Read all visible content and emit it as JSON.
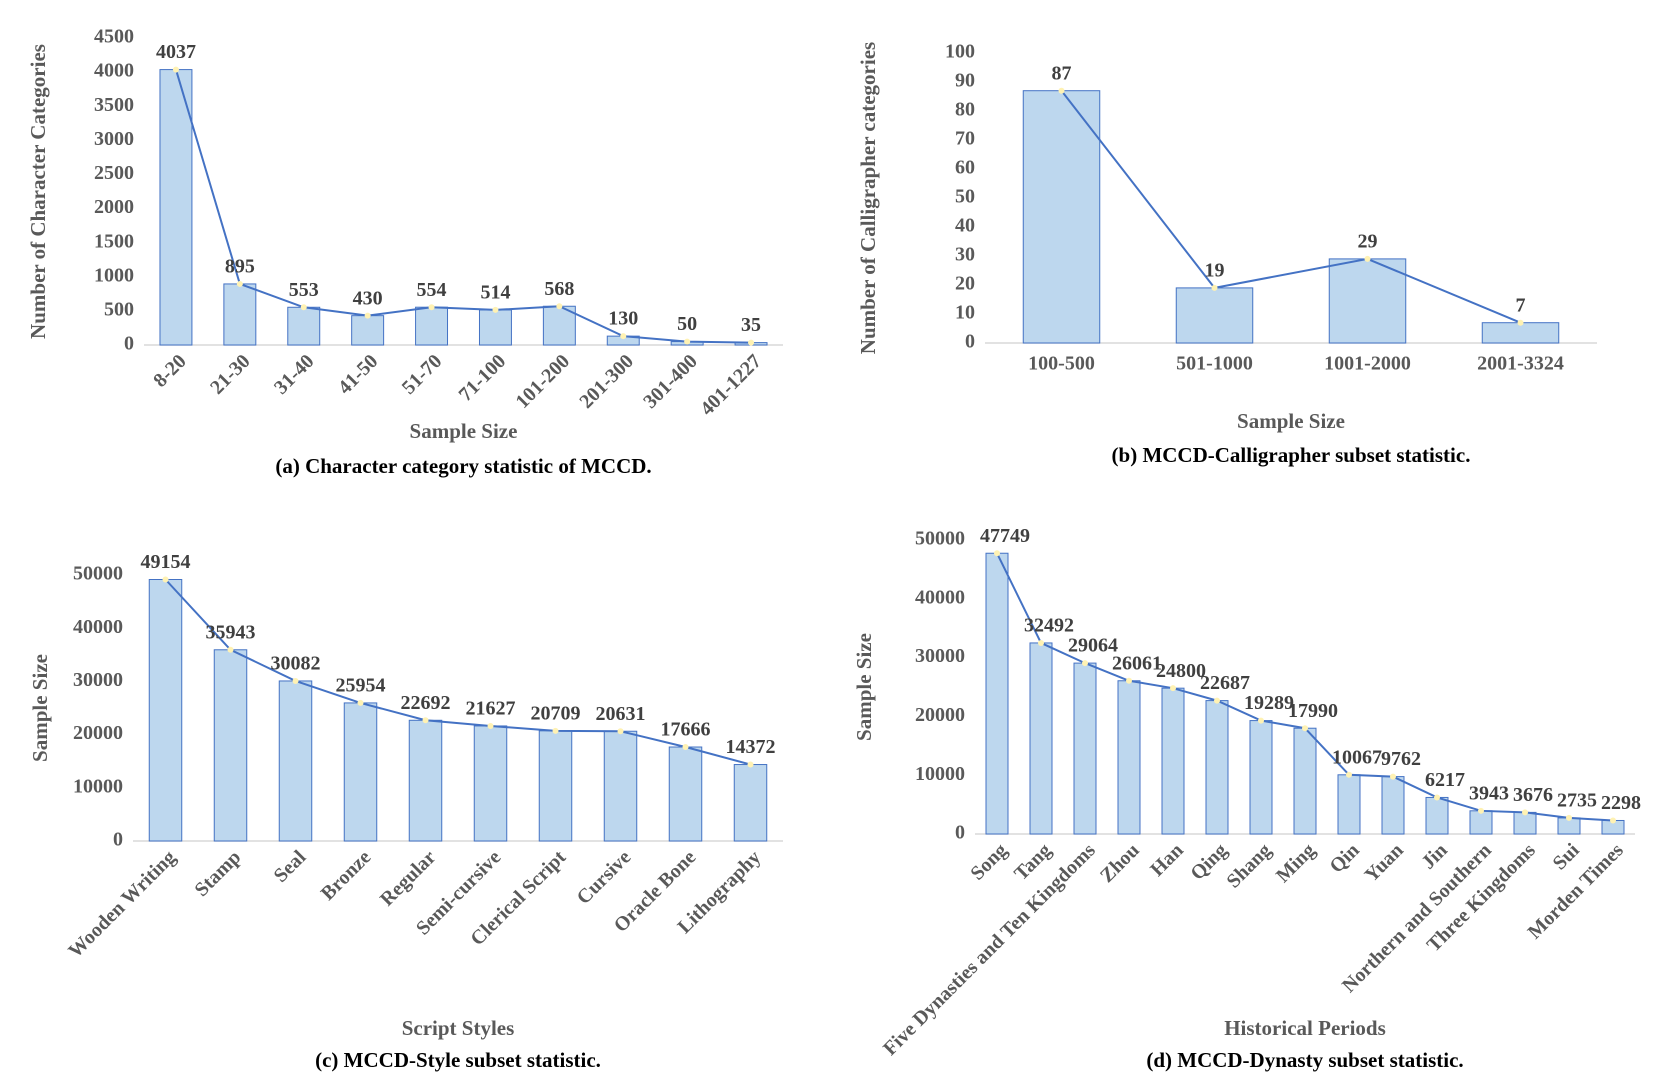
{
  "chart_data": [
    {
      "type": "bar",
      "categories": [
        "8-20",
        "21-30",
        "31-40",
        "41-50",
        "51-70",
        "71-100",
        "101-200",
        "201-300",
        "301-400",
        "401-1227"
      ],
      "values": [
        4037,
        895,
        553,
        430,
        554,
        514,
        568,
        130,
        50,
        35
      ],
      "color": "#bdd7ee",
      "line_color": "#4472c4",
      "ylim": [
        0,
        4500
      ],
      "yticks": [
        0,
        500,
        1000,
        1500,
        2000,
        2500,
        3000,
        3500,
        4000,
        4500
      ],
      "xlabel": "Sample Size",
      "ylabel": "Number of Character Categories",
      "caption": "(a) Character category statistic of MCCD."
    },
    {
      "type": "bar",
      "categories": [
        "100-500",
        "501-1000",
        "1001-2000",
        "2001-3324"
      ],
      "values": [
        87,
        19,
        29,
        7
      ],
      "color": "#bdd7ee",
      "line_color": "#4472c4",
      "ylim": [
        0,
        100
      ],
      "yticks": [
        0,
        10,
        20,
        30,
        40,
        50,
        60,
        70,
        80,
        90,
        100
      ],
      "xlabel": "Sample Size",
      "ylabel": "Number of Calligrapher categories",
      "caption": "(b) MCCD-Calligrapher subset statistic."
    },
    {
      "type": "bar",
      "categories": [
        "Wooden Writing",
        "Stamp",
        "Seal",
        "Bronze",
        "Regular",
        "Semi-cursive",
        "Clerical Script",
        "Cursive",
        "Oracle Bone",
        "Lithography"
      ],
      "values": [
        49154,
        35943,
        30082,
        25954,
        22692,
        21627,
        20709,
        20631,
        17666,
        14372
      ],
      "color": "#bdd7ee",
      "line_color": "#4472c4",
      "ylim": [
        0,
        50000
      ],
      "yticks": [
        0,
        10000,
        20000,
        30000,
        40000,
        50000
      ],
      "xlabel": "Script Styles",
      "ylabel": "Sample Size",
      "caption": "(c) MCCD-Style subset statistic."
    },
    {
      "type": "bar",
      "categories": [
        "Song",
        "Tang",
        "Five Dynasties and Ten Kingdoms",
        "Zhou",
        "Han",
        "Qing",
        "Shang",
        "Ming",
        "Qin",
        "Yuan",
        "Jin",
        "Northern and Southern",
        "Three Kingdoms",
        "Sui",
        "Morden Times"
      ],
      "values": [
        47749,
        32492,
        29064,
        26061,
        24800,
        22687,
        19289,
        17990,
        10067,
        9762,
        6217,
        3943,
        3676,
        2735,
        2298
      ],
      "color": "#bdd7ee",
      "line_color": "#4472c4",
      "ylim": [
        0,
        50000
      ],
      "yticks": [
        0,
        10000,
        20000,
        30000,
        40000,
        50000
      ],
      "xlabel": "Historical Periods",
      "ylabel": "Sample Size",
      "caption": "(d) MCCD-Dynasty subset statistic."
    }
  ]
}
